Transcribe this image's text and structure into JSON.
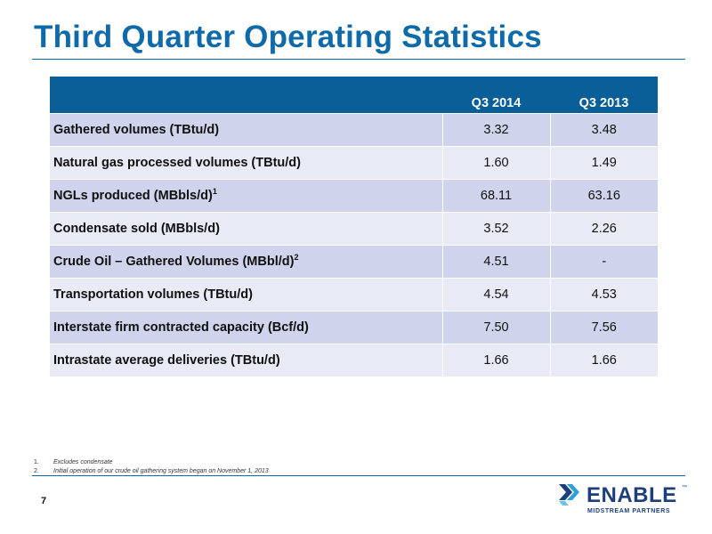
{
  "slide": {
    "title": "Third Quarter Operating Statistics",
    "page_number": "7"
  },
  "table": {
    "headers": [
      "",
      "Q3 2014",
      "Q3 2013"
    ],
    "rows": [
      {
        "label": "Gathered volumes (TBtu/d)",
        "sup": "",
        "q3_2014": "3.32",
        "q3_2013": "3.48"
      },
      {
        "label": "Natural gas processed volumes (TBtu/d)",
        "sup": "",
        "q3_2014": "1.60",
        "q3_2013": "1.49"
      },
      {
        "label": "NGLs produced (MBbls/d)",
        "sup": "1",
        "q3_2014": "68.11",
        "q3_2013": "63.16"
      },
      {
        "label": "Condensate sold (MBbls/d)",
        "sup": "",
        "q3_2014": "3.52",
        "q3_2013": "2.26"
      },
      {
        "label": "Crude Oil – Gathered Volumes (MBbl/d)",
        "sup": "2",
        "q3_2014": "4.51",
        "q3_2013": "-"
      },
      {
        "label": "Transportation volumes (TBtu/d)",
        "sup": "",
        "q3_2014": "4.54",
        "q3_2013": "4.53"
      },
      {
        "label": "Interstate firm contracted capacity (Bcf/d)",
        "sup": "",
        "q3_2014": "7.50",
        "q3_2013": "7.56"
      },
      {
        "label": "Intrastate average deliveries (TBtu/d)",
        "sup": "",
        "q3_2014": "1.66",
        "q3_2013": "1.66"
      }
    ]
  },
  "footnotes": [
    {
      "num": "1.",
      "text": "Excludes condensate"
    },
    {
      "num": "2.",
      "text": "Initial operation of our crude oil gathering system began on November 1, 2013"
    }
  ],
  "logo": {
    "name": "ENABLE",
    "trademark": "™",
    "subtitle": "MIDSTREAM PARTNERS",
    "colors": {
      "primary": "#1d3f7a",
      "accent": "#2f9fd8"
    }
  },
  "colors": {
    "title": "#0e6aa8",
    "header_bg": "#0a5f98",
    "row_odd": "#cfd4ec",
    "row_even": "#e8eaf5"
  }
}
